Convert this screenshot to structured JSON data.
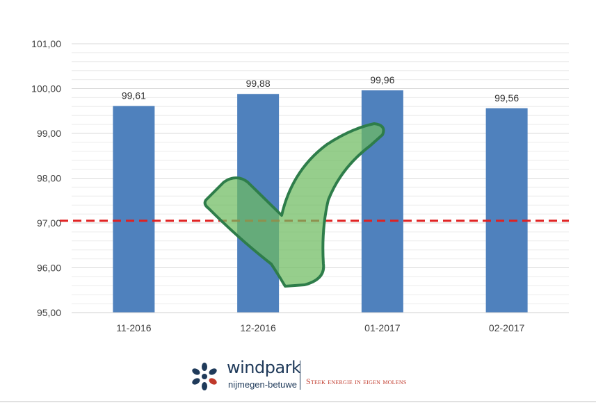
{
  "chart_data": {
    "type": "bar",
    "categories": [
      "11-2016",
      "12-2016",
      "01-2017",
      "02-2017"
    ],
    "values": [
      99.61,
      99.88,
      99.96,
      99.56
    ],
    "value_labels": [
      "99,61",
      "99,88",
      "99,96",
      "99,56"
    ],
    "y_ticks": [
      "95,00",
      "96,00",
      "97,00",
      "98,00",
      "99,00",
      "100,00",
      "101,00"
    ],
    "ylim": [
      95,
      101
    ],
    "reference_line": {
      "value": 97.05,
      "style": "dashed",
      "color": "#e02020"
    },
    "bar_color": "#4f81bd",
    "grid": true,
    "title": "",
    "xlabel": "",
    "ylabel": ""
  },
  "overlay": {
    "icon": "checkmark-icon",
    "fill": "#6dbb5f",
    "stroke": "#2e7d4a"
  },
  "footer": {
    "brand": "windpark",
    "subbrand": "nijmegen-betuwe",
    "tagline": "Steek energie in eigen molens",
    "colors": {
      "brand": "#1f3a5a",
      "tagline": "#c0392b"
    }
  }
}
